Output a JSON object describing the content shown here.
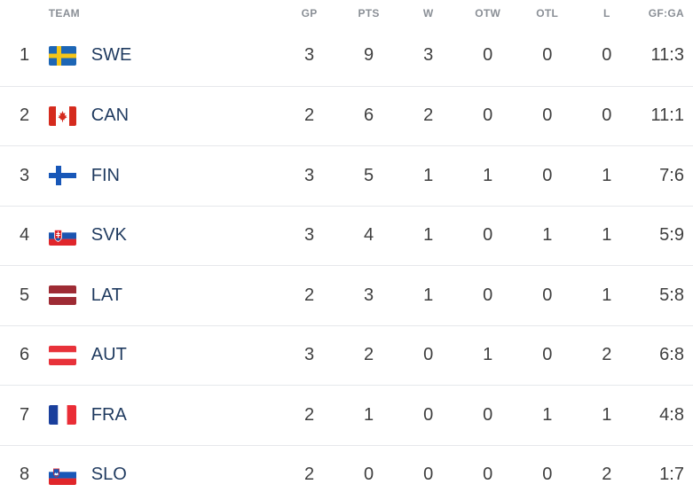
{
  "header": {
    "team": "TEAM",
    "gp": "GP",
    "pts": "PTS",
    "w": "W",
    "otw": "OTW",
    "otl": "OTL",
    "l": "L",
    "gfga": "GF:GA"
  },
  "rows": [
    {
      "rank": "1",
      "team": "SWE",
      "flag": "sweden-flag-icon",
      "gp": "3",
      "pts": "9",
      "w": "3",
      "otw": "0",
      "otl": "0",
      "l": "0",
      "gfga": "11:3"
    },
    {
      "rank": "2",
      "team": "CAN",
      "flag": "canada-flag-icon",
      "gp": "2",
      "pts": "6",
      "w": "2",
      "otw": "0",
      "otl": "0",
      "l": "0",
      "gfga": "11:1"
    },
    {
      "rank": "3",
      "team": "FIN",
      "flag": "finland-flag-icon",
      "gp": "3",
      "pts": "5",
      "w": "1",
      "otw": "1",
      "otl": "0",
      "l": "1",
      "gfga": "7:6"
    },
    {
      "rank": "4",
      "team": "SVK",
      "flag": "slovakia-flag-icon",
      "gp": "3",
      "pts": "4",
      "w": "1",
      "otw": "0",
      "otl": "1",
      "l": "1",
      "gfga": "5:9"
    },
    {
      "rank": "5",
      "team": "LAT",
      "flag": "latvia-flag-icon",
      "gp": "2",
      "pts": "3",
      "w": "1",
      "otw": "0",
      "otl": "0",
      "l": "1",
      "gfga": "5:8"
    },
    {
      "rank": "6",
      "team": "AUT",
      "flag": "austria-flag-icon",
      "gp": "3",
      "pts": "2",
      "w": "0",
      "otw": "1",
      "otl": "0",
      "l": "2",
      "gfga": "6:8"
    },
    {
      "rank": "7",
      "team": "FRA",
      "flag": "france-flag-icon",
      "gp": "2",
      "pts": "1",
      "w": "0",
      "otw": "0",
      "otl": "1",
      "l": "1",
      "gfga": "4:8"
    },
    {
      "rank": "8",
      "team": "SLO",
      "flag": "slovenia-flag-icon",
      "gp": "2",
      "pts": "0",
      "w": "0",
      "otw": "0",
      "otl": "0",
      "l": "2",
      "gfga": "1:7"
    }
  ],
  "colors": {
    "header_text": "#8a8f96",
    "team_text": "#1f3a5f",
    "row_border": "#e6e8eb"
  }
}
